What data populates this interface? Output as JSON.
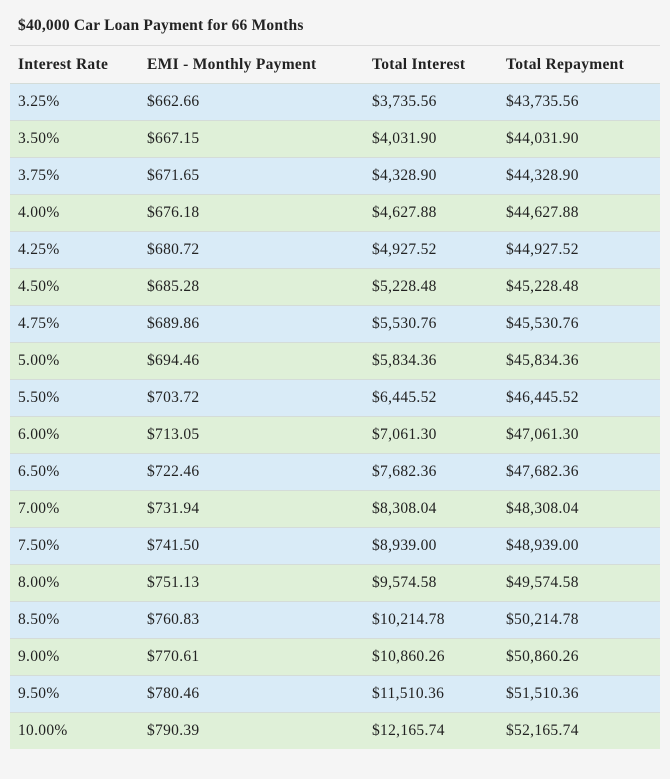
{
  "title": "$40,000 Car Loan Payment for 66 Months",
  "headers": [
    "Interest Rate",
    "EMI - Monthly Payment",
    "Total Interest",
    "Total Repayment"
  ],
  "row_colors": {
    "odd": "#d9ebf7",
    "even": "#dff0d8"
  },
  "rows": [
    [
      "3.25%",
      "$662.66",
      "$3,735.56",
      "$43,735.56"
    ],
    [
      "3.50%",
      "$667.15",
      "$4,031.90",
      "$44,031.90"
    ],
    [
      "3.75%",
      "$671.65",
      "$4,328.90",
      "$44,328.90"
    ],
    [
      "4.00%",
      "$676.18",
      "$4,627.88",
      "$44,627.88"
    ],
    [
      "4.25%",
      "$680.72",
      "$4,927.52",
      "$44,927.52"
    ],
    [
      "4.50%",
      "$685.28",
      "$5,228.48",
      "$45,228.48"
    ],
    [
      "4.75%",
      "$689.86",
      "$5,530.76",
      "$45,530.76"
    ],
    [
      "5.00%",
      "$694.46",
      "$5,834.36",
      "$45,834.36"
    ],
    [
      "5.50%",
      "$703.72",
      "$6,445.52",
      "$46,445.52"
    ],
    [
      "6.00%",
      "$713.05",
      "$7,061.30",
      "$47,061.30"
    ],
    [
      "6.50%",
      "$722.46",
      "$7,682.36",
      "$47,682.36"
    ],
    [
      "7.00%",
      "$731.94",
      "$8,308.04",
      "$48,308.04"
    ],
    [
      "7.50%",
      "$741.50",
      "$8,939.00",
      "$48,939.00"
    ],
    [
      "8.00%",
      "$751.13",
      "$9,574.58",
      "$49,574.58"
    ],
    [
      "8.50%",
      "$760.83",
      "$10,214.78",
      "$50,214.78"
    ],
    [
      "9.00%",
      "$770.61",
      "$10,860.26",
      "$50,860.26"
    ],
    [
      "9.50%",
      "$780.46",
      "$11,510.36",
      "$51,510.36"
    ],
    [
      "10.00%",
      "$790.39",
      "$12,165.74",
      "$52,165.74"
    ]
  ]
}
